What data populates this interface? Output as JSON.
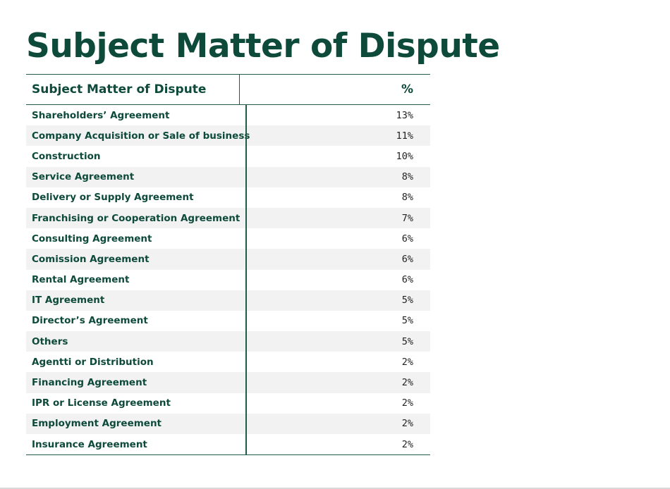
{
  "title": "Subject Matter of Dispute",
  "table": {
    "headers": [
      "Subject Matter of Dispute",
      "%"
    ],
    "rows": [
      {
        "subject": "Shareholders’ Agreement",
        "percent": "13%"
      },
      {
        "subject": "Company Acquisition or Sale of business",
        "percent": "11%"
      },
      {
        "subject": "Construction",
        "percent": "10%"
      },
      {
        "subject": "Service Agreement",
        "percent": "8%"
      },
      {
        "subject": "Delivery or Supply Agreement",
        "percent": "8%"
      },
      {
        "subject": "Franchising or Cooperation Agreement",
        "percent": "7%"
      },
      {
        "subject": "Consulting Agreement",
        "percent": "6%"
      },
      {
        "subject": "Comission Agreement",
        "percent": "6%"
      },
      {
        "subject": "Rental Agreement",
        "percent": "6%"
      },
      {
        "subject": "IT Agreement",
        "percent": "5%"
      },
      {
        "subject": "Director’s Agreement",
        "percent": "5%"
      },
      {
        "subject": "Others",
        "percent": "5%"
      },
      {
        "subject": "Agentti or Distribution",
        "percent": "2%"
      },
      {
        "subject": "Financing Agreement",
        "percent": "2%"
      },
      {
        "subject": "IPR or License Agreement",
        "percent": "2%"
      },
      {
        "subject": "Employment Agreement",
        "percent": "2%"
      },
      {
        "subject": "Insurance Agreement",
        "percent": "2%"
      }
    ]
  },
  "colors": {
    "brand_green": "#0d4a3a",
    "rule": "#1f5a4a",
    "stripe": "#f2f2f2"
  }
}
